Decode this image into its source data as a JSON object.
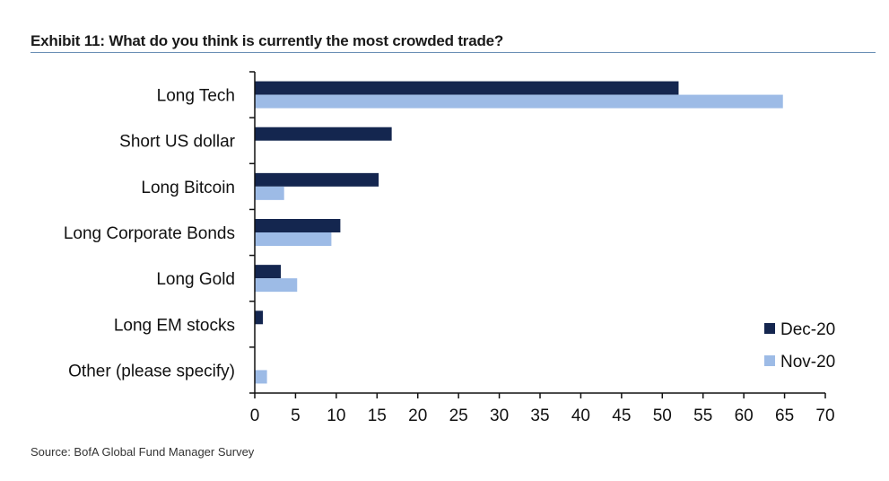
{
  "title": "Exhibit 11: What do you think is currently the most crowded trade?",
  "source": "Source: BofA Global Fund Manager Survey",
  "colors": {
    "dec20": "#14264f",
    "nov20": "#9dbbe6",
    "axis": "#111111"
  },
  "chart_data": {
    "type": "bar",
    "orientation": "horizontal",
    "categories": [
      "Long Tech",
      "Short US dollar",
      "Long Bitcoin",
      "Long Corporate Bonds",
      "Long Gold",
      "Long EM stocks",
      "Other (please specify)"
    ],
    "series": [
      {
        "name": "Dec-20",
        "values": [
          52,
          16.8,
          15.2,
          10.5,
          3.2,
          1.0,
          0
        ]
      },
      {
        "name": "Nov-20",
        "values": [
          64.8,
          0,
          3.6,
          9.4,
          5.2,
          0,
          1.5
        ]
      }
    ],
    "xlim": [
      0,
      70
    ],
    "xticks": [
      "0",
      "5",
      "10",
      "15",
      "20",
      "25",
      "30",
      "35",
      "40",
      "45",
      "50",
      "55",
      "60",
      "65",
      "70"
    ],
    "grid": false,
    "legend": "bottom-right"
  }
}
